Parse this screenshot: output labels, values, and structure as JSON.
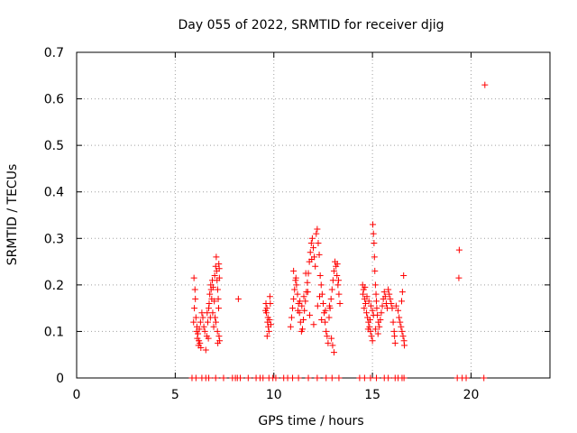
{
  "chart_data": {
    "type": "scatter",
    "title": "Day 055 of 2022, SRMTID for receiver djig",
    "xlabel": "GPS time / hours",
    "ylabel": "SRMTID / TECUs",
    "xlim": [
      0,
      24
    ],
    "ylim": [
      0,
      0.7
    ],
    "x_ticks": [
      0,
      5,
      10,
      15,
      20
    ],
    "x_tick_labels": [
      "0",
      "5",
      "10",
      "15",
      "20"
    ],
    "y_ticks": [
      0,
      0.1,
      0.2,
      0.3,
      0.4,
      0.5,
      0.6,
      0.7
    ],
    "y_tick_labels": [
      "0",
      "0.1",
      "0.2",
      "0.3",
      "0.4",
      "0.5",
      "0.6",
      "0.7"
    ],
    "grid": true,
    "marker": "+",
    "color": "#ff0000",
    "series": [
      {
        "name": "SRMTID",
        "points": [
          [
            5.85,
            0.0
          ],
          [
            6.05,
            0.0
          ],
          [
            6.35,
            0.0
          ],
          [
            6.55,
            0.0
          ],
          [
            6.7,
            0.0
          ],
          [
            7.05,
            0.0
          ],
          [
            7.45,
            0.0
          ],
          [
            7.9,
            0.0
          ],
          [
            8.05,
            0.0
          ],
          [
            8.15,
            0.0
          ],
          [
            8.3,
            0.0
          ],
          [
            8.7,
            0.0
          ],
          [
            9.1,
            0.0
          ],
          [
            9.3,
            0.0
          ],
          [
            9.45,
            0.0
          ],
          [
            9.75,
            0.0
          ],
          [
            9.95,
            0.0
          ],
          [
            10.1,
            0.0
          ],
          [
            10.5,
            0.0
          ],
          [
            10.7,
            0.0
          ],
          [
            10.95,
            0.0
          ],
          [
            11.25,
            0.0
          ],
          [
            11.75,
            0.0
          ],
          [
            12.2,
            0.0
          ],
          [
            12.65,
            0.0
          ],
          [
            12.95,
            0.0
          ],
          [
            13.3,
            0.0
          ],
          [
            14.35,
            0.0
          ],
          [
            14.6,
            0.0
          ],
          [
            14.9,
            0.0
          ],
          [
            15.2,
            0.0
          ],
          [
            15.6,
            0.0
          ],
          [
            15.8,
            0.0
          ],
          [
            16.15,
            0.0
          ],
          [
            16.3,
            0.0
          ],
          [
            16.5,
            0.0
          ],
          [
            16.6,
            0.0
          ],
          [
            19.3,
            0.0
          ],
          [
            19.55,
            0.0
          ],
          [
            19.75,
            0.0
          ],
          [
            20.65,
            0.0
          ],
          [
            5.95,
            0.215
          ],
          [
            6.0,
            0.19
          ],
          [
            6.02,
            0.17
          ],
          [
            5.97,
            0.15
          ],
          [
            6.05,
            0.13
          ],
          [
            5.93,
            0.12
          ],
          [
            6.1,
            0.11
          ],
          [
            6.08,
            0.1
          ],
          [
            6.15,
            0.095
          ],
          [
            6.12,
            0.085
          ],
          [
            6.2,
            0.08
          ],
          [
            6.25,
            0.075
          ],
          [
            6.18,
            0.07
          ],
          [
            6.3,
            0.065
          ],
          [
            6.22,
            0.105
          ],
          [
            6.28,
            0.12
          ],
          [
            6.35,
            0.14
          ],
          [
            6.4,
            0.13
          ],
          [
            6.45,
            0.11
          ],
          [
            6.5,
            0.1
          ],
          [
            6.55,
            0.06
          ],
          [
            6.6,
            0.09
          ],
          [
            6.65,
            0.12
          ],
          [
            6.7,
            0.15
          ],
          [
            6.75,
            0.18
          ],
          [
            6.8,
            0.2
          ],
          [
            6.85,
            0.17
          ],
          [
            6.9,
            0.14
          ],
          [
            6.95,
            0.11
          ],
          [
            6.62,
            0.14
          ],
          [
            6.72,
            0.16
          ],
          [
            6.82,
            0.19
          ],
          [
            6.88,
            0.21
          ],
          [
            7.0,
            0.22
          ],
          [
            7.05,
            0.24
          ],
          [
            7.08,
            0.26
          ],
          [
            7.1,
            0.23
          ],
          [
            7.12,
            0.21
          ],
          [
            7.15,
            0.19
          ],
          [
            7.18,
            0.17
          ],
          [
            7.2,
            0.15
          ],
          [
            7.02,
            0.13
          ],
          [
            7.06,
            0.12
          ],
          [
            7.14,
            0.1
          ],
          [
            7.22,
            0.09
          ],
          [
            7.25,
            0.08
          ],
          [
            7.16,
            0.075
          ],
          [
            6.98,
            0.165
          ],
          [
            6.92,
            0.195
          ],
          [
            6.78,
            0.13
          ],
          [
            6.68,
            0.085
          ],
          [
            7.24,
            0.215
          ],
          [
            7.23,
            0.235
          ],
          [
            7.21,
            0.245
          ],
          [
            8.2,
            0.17
          ],
          [
            9.6,
            0.16
          ],
          [
            9.65,
            0.15
          ],
          [
            9.62,
            0.14
          ],
          [
            9.7,
            0.13
          ],
          [
            9.68,
            0.12
          ],
          [
            9.72,
            0.11
          ],
          [
            9.75,
            0.1
          ],
          [
            9.66,
            0.09
          ],
          [
            9.58,
            0.145
          ],
          [
            9.8,
            0.175
          ],
          [
            9.82,
            0.16
          ],
          [
            9.78,
            0.125
          ],
          [
            9.85,
            0.115
          ],
          [
            10.85,
            0.11
          ],
          [
            10.9,
            0.13
          ],
          [
            10.95,
            0.15
          ],
          [
            11.0,
            0.17
          ],
          [
            11.05,
            0.19
          ],
          [
            11.1,
            0.21
          ],
          [
            11.0,
            0.23
          ],
          [
            11.15,
            0.2
          ],
          [
            11.2,
            0.18
          ],
          [
            11.25,
            0.16
          ],
          [
            11.3,
            0.14
          ],
          [
            11.35,
            0.12
          ],
          [
            11.4,
            0.1
          ],
          [
            11.45,
            0.105
          ],
          [
            11.5,
            0.125
          ],
          [
            11.55,
            0.145
          ],
          [
            11.6,
            0.165
          ],
          [
            11.65,
            0.185
          ],
          [
            11.7,
            0.205
          ],
          [
            11.75,
            0.225
          ],
          [
            11.8,
            0.25
          ],
          [
            11.85,
            0.27
          ],
          [
            11.9,
            0.29
          ],
          [
            11.95,
            0.3
          ],
          [
            12.0,
            0.28
          ],
          [
            12.05,
            0.26
          ],
          [
            12.1,
            0.24
          ],
          [
            12.15,
            0.31
          ],
          [
            12.2,
            0.32
          ],
          [
            12.25,
            0.29
          ],
          [
            12.3,
            0.265
          ],
          [
            12.35,
            0.22
          ],
          [
            12.4,
            0.2
          ],
          [
            12.45,
            0.18
          ],
          [
            12.5,
            0.16
          ],
          [
            12.55,
            0.14
          ],
          [
            12.6,
            0.12
          ],
          [
            12.65,
            0.1
          ],
          [
            12.7,
            0.09
          ],
          [
            12.75,
            0.075
          ],
          [
            12.8,
            0.13
          ],
          [
            12.85,
            0.15
          ],
          [
            12.9,
            0.17
          ],
          [
            12.95,
            0.19
          ],
          [
            13.0,
            0.21
          ],
          [
            13.05,
            0.23
          ],
          [
            13.1,
            0.25
          ],
          [
            13.15,
            0.24
          ],
          [
            13.2,
            0.22
          ],
          [
            13.25,
            0.2
          ],
          [
            13.3,
            0.18
          ],
          [
            13.35,
            0.16
          ],
          [
            13.05,
            0.055
          ],
          [
            12.98,
            0.07
          ],
          [
            12.92,
            0.085
          ],
          [
            11.12,
            0.215
          ],
          [
            11.62,
            0.225
          ],
          [
            11.92,
            0.255
          ],
          [
            11.72,
            0.185
          ],
          [
            12.32,
            0.175
          ],
          [
            12.82,
            0.155
          ],
          [
            13.22,
            0.245
          ],
          [
            13.28,
            0.21
          ],
          [
            11.42,
            0.155
          ],
          [
            11.82,
            0.135
          ],
          [
            12.02,
            0.115
          ],
          [
            12.42,
            0.125
          ],
          [
            12.62,
            0.145
          ],
          [
            12.22,
            0.155
          ],
          [
            11.52,
            0.175
          ],
          [
            11.32,
            0.165
          ],
          [
            11.22,
            0.145
          ],
          [
            14.5,
            0.2
          ],
          [
            14.55,
            0.19
          ],
          [
            14.52,
            0.18
          ],
          [
            14.6,
            0.17
          ],
          [
            14.65,
            0.16
          ],
          [
            14.58,
            0.15
          ],
          [
            14.7,
            0.14
          ],
          [
            14.75,
            0.13
          ],
          [
            14.8,
            0.12
          ],
          [
            14.85,
            0.11
          ],
          [
            14.9,
            0.1
          ],
          [
            14.95,
            0.09
          ],
          [
            15.0,
            0.08
          ],
          [
            14.62,
            0.195
          ],
          [
            14.72,
            0.175
          ],
          [
            14.82,
            0.165
          ],
          [
            14.92,
            0.155
          ],
          [
            15.0,
            0.145
          ],
          [
            15.05,
            0.135
          ],
          [
            15.02,
            0.33
          ],
          [
            15.05,
            0.31
          ],
          [
            15.08,
            0.29
          ],
          [
            15.1,
            0.26
          ],
          [
            15.12,
            0.23
          ],
          [
            15.15,
            0.2
          ],
          [
            15.18,
            0.18
          ],
          [
            15.2,
            0.165
          ],
          [
            15.22,
            0.15
          ],
          [
            15.25,
            0.135
          ],
          [
            15.3,
            0.12
          ],
          [
            15.35,
            0.11
          ],
          [
            15.4,
            0.125
          ],
          [
            15.45,
            0.14
          ],
          [
            15.5,
            0.155
          ],
          [
            15.55,
            0.17
          ],
          [
            15.6,
            0.185
          ],
          [
            15.65,
            0.175
          ],
          [
            15.7,
            0.16
          ],
          [
            15.75,
            0.15
          ],
          [
            15.8,
            0.19
          ],
          [
            15.85,
            0.18
          ],
          [
            15.9,
            0.17
          ],
          [
            15.95,
            0.16
          ],
          [
            16.0,
            0.15
          ],
          [
            16.05,
            0.12
          ],
          [
            16.1,
            0.1
          ],
          [
            16.12,
            0.09
          ],
          [
            16.15,
            0.075
          ],
          [
            16.2,
            0.155
          ],
          [
            16.3,
            0.145
          ],
          [
            16.35,
            0.13
          ],
          [
            16.4,
            0.12
          ],
          [
            16.45,
            0.11
          ],
          [
            16.5,
            0.1
          ],
          [
            16.55,
            0.09
          ],
          [
            16.6,
            0.08
          ],
          [
            16.62,
            0.07
          ],
          [
            16.58,
            0.22
          ],
          [
            16.52,
            0.185
          ],
          [
            16.48,
            0.165
          ],
          [
            14.88,
            0.125
          ],
          [
            14.78,
            0.105
          ],
          [
            15.15,
            0.105
          ],
          [
            15.28,
            0.095
          ],
          [
            19.4,
            0.275
          ],
          [
            19.38,
            0.215
          ],
          [
            20.7,
            0.63
          ]
        ]
      }
    ]
  }
}
